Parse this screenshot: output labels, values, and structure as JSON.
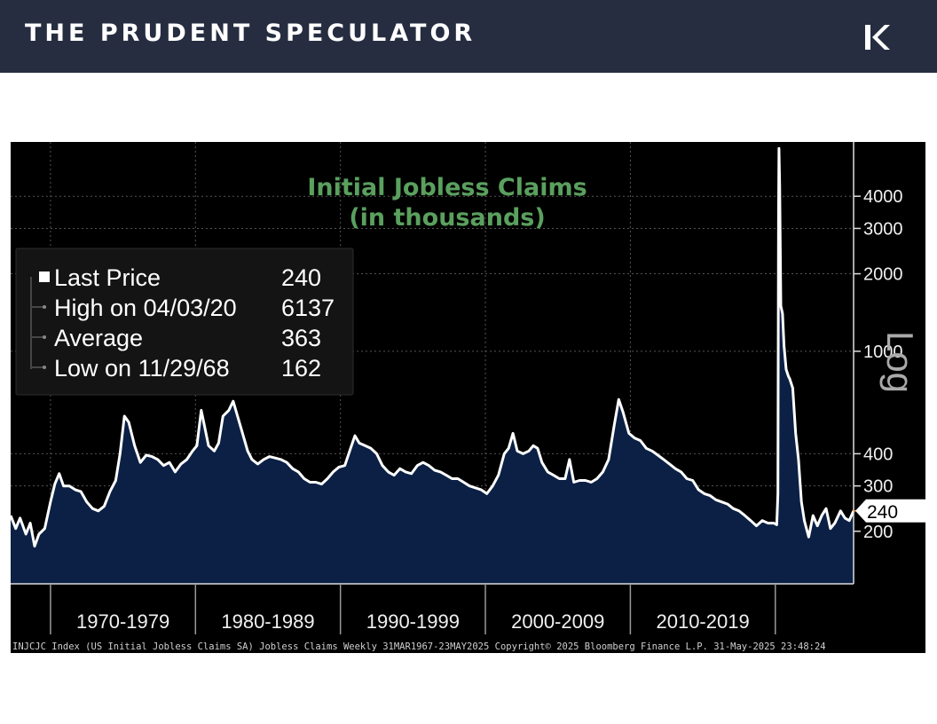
{
  "header": {
    "brand": "THE PRUDENT SPECULATOR"
  },
  "icons": {
    "logo": "prudent-speculator-logo-icon"
  },
  "colors": {
    "banner": "#262d40",
    "area_fill": "#0b2044",
    "line": "#ffffff",
    "title": "#5aa05e",
    "last_marker": "#ff8c1a"
  },
  "legend": {
    "rows": [
      {
        "label": "Last Price",
        "value": "240"
      },
      {
        "label": "High on 04/03/20",
        "value": "6137"
      },
      {
        "label": "Average",
        "value": "363"
      },
      {
        "label": "Low on 11/29/68",
        "value": "162"
      }
    ]
  },
  "footer": {
    "source": "INJCJC Index (US Initial Jobless Claims SA) Jobless Claims  Weekly 31MAR1967-23MAY2025 Copyright© 2025 Bloomberg Finance L.P. 31-May-2025 23:48:24"
  },
  "chart_data": {
    "type": "area",
    "title_lines": [
      "Initial Jobless Claims",
      "(in thousands)"
    ],
    "log_label": "Log",
    "last_value_label": "240",
    "y_scale": "log",
    "ylim": [
      125,
      6500
    ],
    "xlim": [
      1967.25,
      2025.4
    ],
    "y_ticks": [
      {
        "value": 200,
        "label": "200"
      },
      {
        "value": 300,
        "label": "300"
      },
      {
        "value": 400,
        "label": "400"
      },
      {
        "value": 1000,
        "label": "1000"
      },
      {
        "value": 2000,
        "label": "2000"
      },
      {
        "value": 3000,
        "label": "3000"
      },
      {
        "value": 4000,
        "label": "4000"
      }
    ],
    "x_groups": [
      {
        "label": "1970-1979",
        "from": 1970,
        "to": 1980
      },
      {
        "label": "1980-1989",
        "from": 1980,
        "to": 1990
      },
      {
        "label": "1990-1999",
        "from": 1990,
        "to": 2000
      },
      {
        "label": "2000-2009",
        "from": 2000,
        "to": 2010
      },
      {
        "label": "2010-2019",
        "from": 2010,
        "to": 2020
      }
    ],
    "gridlines": "dotted",
    "series": [
      {
        "values_thousands": [
          [
            1967.25,
            230
          ],
          [
            1967.6,
            205
          ],
          [
            1967.9,
            225
          ],
          [
            1968.3,
            195
          ],
          [
            1968.6,
            215
          ],
          [
            1968.9,
            175
          ],
          [
            1969.2,
            195
          ],
          [
            1969.6,
            205
          ],
          [
            1970.0,
            260
          ],
          [
            1970.3,
            305
          ],
          [
            1970.6,
            335
          ],
          [
            1970.9,
            300
          ],
          [
            1971.3,
            300
          ],
          [
            1971.7,
            290
          ],
          [
            1972.1,
            285
          ],
          [
            1972.5,
            260
          ],
          [
            1972.9,
            245
          ],
          [
            1973.3,
            240
          ],
          [
            1973.7,
            250
          ],
          [
            1974.1,
            285
          ],
          [
            1974.5,
            315
          ],
          [
            1974.8,
            400
          ],
          [
            1975.1,
            560
          ],
          [
            1975.4,
            530
          ],
          [
            1975.8,
            430
          ],
          [
            1976.2,
            370
          ],
          [
            1976.6,
            395
          ],
          [
            1977.0,
            390
          ],
          [
            1977.4,
            380
          ],
          [
            1977.8,
            360
          ],
          [
            1978.2,
            370
          ],
          [
            1978.6,
            340
          ],
          [
            1979.0,
            365
          ],
          [
            1979.4,
            380
          ],
          [
            1979.8,
            410
          ],
          [
            1980.1,
            430
          ],
          [
            1980.4,
            590
          ],
          [
            1980.6,
            520
          ],
          [
            1980.9,
            430
          ],
          [
            1981.3,
            410
          ],
          [
            1981.6,
            440
          ],
          [
            1981.9,
            560
          ],
          [
            1982.3,
            590
          ],
          [
            1982.6,
            640
          ],
          [
            1982.9,
            560
          ],
          [
            1983.2,
            490
          ],
          [
            1983.6,
            410
          ],
          [
            1983.9,
            380
          ],
          [
            1984.3,
            365
          ],
          [
            1984.7,
            380
          ],
          [
            1985.1,
            390
          ],
          [
            1985.5,
            385
          ],
          [
            1985.9,
            380
          ],
          [
            1986.3,
            370
          ],
          [
            1986.7,
            350
          ],
          [
            1987.1,
            340
          ],
          [
            1987.5,
            320
          ],
          [
            1987.9,
            310
          ],
          [
            1988.3,
            310
          ],
          [
            1988.7,
            305
          ],
          [
            1989.1,
            320
          ],
          [
            1989.5,
            340
          ],
          [
            1989.9,
            355
          ],
          [
            1990.3,
            360
          ],
          [
            1990.7,
            420
          ],
          [
            1991.0,
            470
          ],
          [
            1991.3,
            440
          ],
          [
            1991.7,
            430
          ],
          [
            1992.1,
            420
          ],
          [
            1992.5,
            400
          ],
          [
            1992.9,
            360
          ],
          [
            1993.3,
            340
          ],
          [
            1993.7,
            330
          ],
          [
            1994.1,
            350
          ],
          [
            1994.5,
            340
          ],
          [
            1994.9,
            335
          ],
          [
            1995.3,
            360
          ],
          [
            1995.7,
            370
          ],
          [
            1996.1,
            360
          ],
          [
            1996.5,
            345
          ],
          [
            1996.9,
            340
          ],
          [
            1997.3,
            330
          ],
          [
            1997.7,
            320
          ],
          [
            1998.1,
            320
          ],
          [
            1998.5,
            310
          ],
          [
            1998.9,
            300
          ],
          [
            1999.3,
            295
          ],
          [
            1999.7,
            290
          ],
          [
            2000.1,
            280
          ],
          [
            2000.5,
            300
          ],
          [
            2000.9,
            330
          ],
          [
            2001.3,
            400
          ],
          [
            2001.6,
            420
          ],
          [
            2001.9,
            480
          ],
          [
            2002.2,
            410
          ],
          [
            2002.6,
            400
          ],
          [
            2003.0,
            410
          ],
          [
            2003.3,
            430
          ],
          [
            2003.6,
            420
          ],
          [
            2003.9,
            370
          ],
          [
            2004.3,
            340
          ],
          [
            2004.7,
            330
          ],
          [
            2005.1,
            320
          ],
          [
            2005.5,
            320
          ],
          [
            2005.8,
            380
          ],
          [
            2006.1,
            310
          ],
          [
            2006.5,
            315
          ],
          [
            2006.9,
            315
          ],
          [
            2007.3,
            310
          ],
          [
            2007.7,
            320
          ],
          [
            2008.1,
            340
          ],
          [
            2008.5,
            380
          ],
          [
            2008.9,
            520
          ],
          [
            2009.2,
            650
          ],
          [
            2009.5,
            580
          ],
          [
            2009.9,
            480
          ],
          [
            2010.3,
            460
          ],
          [
            2010.7,
            450
          ],
          [
            2011.1,
            420
          ],
          [
            2011.5,
            410
          ],
          [
            2011.9,
            395
          ],
          [
            2012.3,
            380
          ],
          [
            2012.7,
            365
          ],
          [
            2013.1,
            350
          ],
          [
            2013.5,
            340
          ],
          [
            2013.9,
            320
          ],
          [
            2014.3,
            315
          ],
          [
            2014.7,
            290
          ],
          [
            2015.1,
            280
          ],
          [
            2015.5,
            275
          ],
          [
            2015.9,
            265
          ],
          [
            2016.3,
            260
          ],
          [
            2016.7,
            255
          ],
          [
            2017.1,
            245
          ],
          [
            2017.5,
            240
          ],
          [
            2017.9,
            230
          ],
          [
            2018.3,
            220
          ],
          [
            2018.7,
            210
          ],
          [
            2019.1,
            220
          ],
          [
            2019.5,
            215
          ],
          [
            2019.9,
            215
          ],
          [
            2020.1,
            212
          ],
          [
            2020.18,
            280
          ],
          [
            2020.22,
            3300
          ],
          [
            2020.25,
            6137
          ],
          [
            2020.3,
            4400
          ],
          [
            2020.38,
            1500
          ],
          [
            2020.5,
            1400
          ],
          [
            2020.6,
            1050
          ],
          [
            2020.75,
            850
          ],
          [
            2020.9,
            800
          ],
          [
            2021.0,
            780
          ],
          [
            2021.2,
            720
          ],
          [
            2021.4,
            480
          ],
          [
            2021.6,
            380
          ],
          [
            2021.8,
            260
          ],
          [
            2022.0,
            220
          ],
          [
            2022.3,
            190
          ],
          [
            2022.6,
            230
          ],
          [
            2022.9,
            210
          ],
          [
            2023.2,
            230
          ],
          [
            2023.5,
            245
          ],
          [
            2023.8,
            205
          ],
          [
            2024.1,
            215
          ],
          [
            2024.5,
            240
          ],
          [
            2024.8,
            225
          ],
          [
            2025.1,
            220
          ],
          [
            2025.4,
            240
          ]
        ]
      }
    ]
  }
}
